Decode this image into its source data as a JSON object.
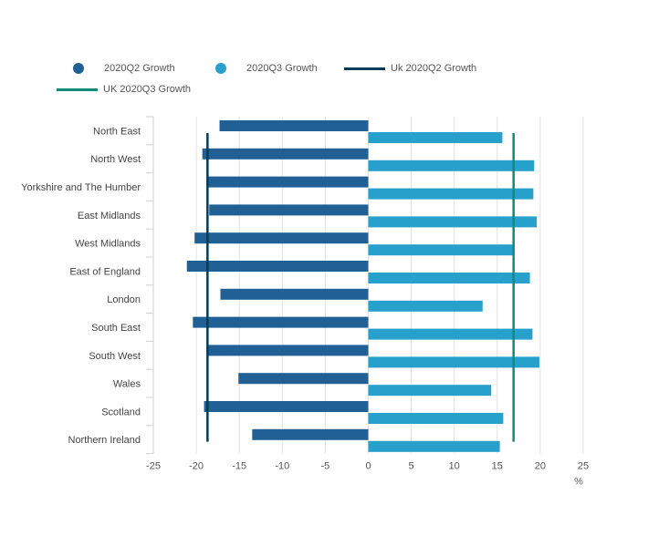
{
  "chart_data": {
    "type": "bar",
    "orientation": "horizontal",
    "categories": [
      "North East",
      "North West",
      "Yorkshire and The Humber",
      "East Midlands",
      "West Midlands",
      "East of England",
      "London",
      "South East",
      "South West",
      "Wales",
      "Scotland",
      "Northern Ireland"
    ],
    "series": [
      {
        "name": "2020Q2 Growth",
        "color": "#206095",
        "values": [
          -17.3,
          -19.3,
          -18.6,
          -18.5,
          -20.2,
          -21.1,
          -17.2,
          -20.4,
          -18.7,
          -15.1,
          -19.1,
          -13.5
        ]
      },
      {
        "name": "2020Q3 Growth",
        "color": "#27a0cc",
        "values": [
          15.6,
          19.3,
          19.2,
          19.6,
          16.8,
          18.8,
          13.3,
          19.1,
          19.9,
          14.3,
          15.7,
          15.3
        ]
      }
    ],
    "reference_lines": [
      {
        "name": "Uk 2020Q2 Growth",
        "value": -18.7,
        "color": "#003c57"
      },
      {
        "name": "UK 2020Q3 Growth",
        "value": 16.9,
        "color": "#118c7b"
      }
    ],
    "xlim": [
      -25,
      25
    ],
    "x_ticks": [
      -25,
      -20,
      -15,
      -10,
      -5,
      0,
      5,
      10,
      15,
      20,
      25
    ],
    "xlabel": "%",
    "ylabel": "",
    "title": "",
    "grid": "vertical",
    "legend_position": "top-left"
  }
}
